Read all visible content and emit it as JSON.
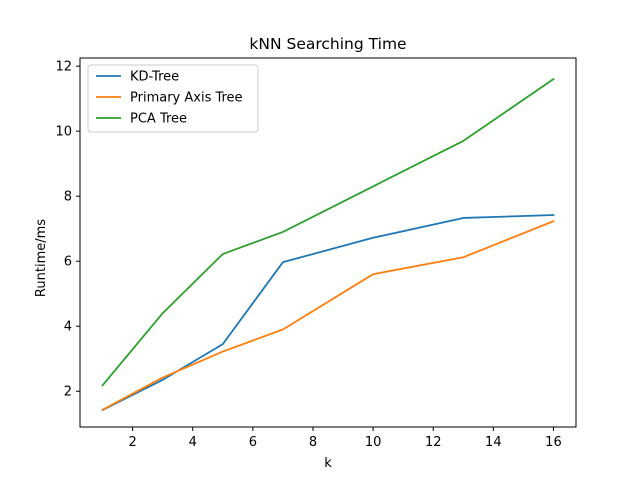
{
  "chart_data": {
    "type": "line",
    "title": "kNN Searching Time",
    "xlabel": "k",
    "ylabel": "Runtime/ms",
    "xlim": [
      0.25,
      16.75
    ],
    "ylim": [
      0.9,
      12.25
    ],
    "xticks": [
      2,
      4,
      6,
      8,
      10,
      12,
      14,
      16
    ],
    "yticks": [
      2,
      4,
      6,
      8,
      10,
      12
    ],
    "grid": false,
    "legend_position": "top-left",
    "x": [
      1,
      3,
      5,
      7,
      10,
      13,
      16
    ],
    "series": [
      {
        "name": "KD-Tree",
        "color": "#1f77b4",
        "values": [
          1.42,
          2.35,
          3.45,
          5.97,
          6.72,
          7.33,
          7.42
        ]
      },
      {
        "name": "Primary Axis Tree",
        "color": "#ff7f0e",
        "values": [
          1.43,
          2.42,
          3.22,
          3.9,
          5.6,
          6.12,
          7.23
        ]
      },
      {
        "name": "PCA Tree",
        "color": "#2ca02c",
        "values": [
          2.18,
          4.4,
          6.22,
          6.9,
          8.3,
          9.7,
          11.6
        ]
      }
    ]
  }
}
